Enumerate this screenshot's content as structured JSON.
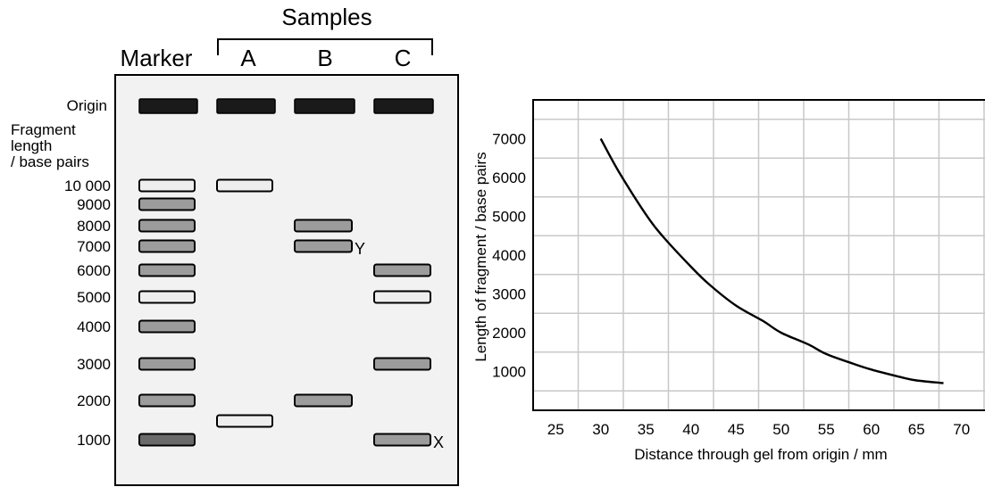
{
  "gel": {
    "samples_heading": "Samples",
    "lane_headers": [
      "Marker",
      "A",
      "B",
      "C"
    ],
    "origin_label": "Origin",
    "axis_heading": "Fragment\nlength\n/ base pairs",
    "size_labels": [
      "10 000",
      "9000",
      "8000",
      "7000",
      "6000",
      "5000",
      "4000",
      "3000",
      "2000",
      "1000"
    ],
    "band_annotations": [
      {
        "label": "Y",
        "lane": "B",
        "size_bp": 7000
      },
      {
        "label": "X",
        "lane": "C",
        "size_bp": 1000
      }
    ],
    "origin_bands": [
      "Marker",
      "A",
      "B",
      "C"
    ],
    "bands": [
      {
        "lane": "Marker",
        "size_bp": 10000,
        "shade": "light"
      },
      {
        "lane": "Marker",
        "size_bp": 9000,
        "shade": "medium"
      },
      {
        "lane": "Marker",
        "size_bp": 8000,
        "shade": "medium"
      },
      {
        "lane": "Marker",
        "size_bp": 7000,
        "shade": "medium"
      },
      {
        "lane": "Marker",
        "size_bp": 6000,
        "shade": "medium"
      },
      {
        "lane": "Marker",
        "size_bp": 5000,
        "shade": "light"
      },
      {
        "lane": "Marker",
        "size_bp": 4000,
        "shade": "medium"
      },
      {
        "lane": "Marker",
        "size_bp": 3000,
        "shade": "medium"
      },
      {
        "lane": "Marker",
        "size_bp": 2000,
        "shade": "medium"
      },
      {
        "lane": "Marker",
        "size_bp": 1000,
        "shade": "dark"
      },
      {
        "lane": "A",
        "size_bp": 10000,
        "shade": "light"
      },
      {
        "lane": "A",
        "size_bp": 1500,
        "shade": "light"
      },
      {
        "lane": "B",
        "size_bp": 8000,
        "shade": "medium"
      },
      {
        "lane": "B",
        "size_bp": 7000,
        "shade": "medium"
      },
      {
        "lane": "B",
        "size_bp": 2000,
        "shade": "medium"
      },
      {
        "lane": "C",
        "size_bp": 6000,
        "shade": "medium"
      },
      {
        "lane": "C",
        "size_bp": 5000,
        "shade": "light"
      },
      {
        "lane": "C",
        "size_bp": 3000,
        "shade": "medium"
      },
      {
        "lane": "C",
        "size_bp": 1000,
        "shade": "medium"
      }
    ],
    "colors": {
      "origin": "#1a1a1a",
      "light": "#eeeeee",
      "medium": "#9c9c9c",
      "dark": "#6a6a6a",
      "gel_background": "#f2f2f2"
    }
  },
  "chart_data": {
    "type": "line",
    "title": "",
    "xlabel": "Distance through gel from origin / mm",
    "ylabel": "Length of fragment / base pairs",
    "xlim": [
      22.5,
      73
    ],
    "ylim": [
      0,
      8000
    ],
    "xticks": [
      25,
      30,
      35,
      40,
      45,
      50,
      55,
      60,
      65,
      70
    ],
    "yticks": [
      1000,
      2000,
      3000,
      4000,
      5000,
      6000,
      7000
    ],
    "x_grid_lines": [
      27.5,
      32.5,
      37.5,
      42.5,
      47.5,
      52.5,
      57.5,
      62.5,
      67.5,
      72.5
    ],
    "y_grid_lines": [
      500,
      1500,
      2500,
      3500,
      4500,
      5500,
      6500,
      7500
    ],
    "grid": true,
    "legend": "none",
    "series": [
      {
        "x": [
          30,
          32,
          35,
          37,
          40,
          42,
          45,
          48,
          50,
          53,
          55,
          58,
          60,
          63,
          65,
          68
        ],
        "y": [
          7000,
          6150,
          5050,
          4450,
          3700,
          3250,
          2700,
          2300,
          2000,
          1700,
          1450,
          1200,
          1050,
          870,
          770,
          700
        ]
      }
    ],
    "colors": {
      "line": "#000000",
      "grid": "#c8c8c8",
      "frame": "#000000"
    }
  }
}
